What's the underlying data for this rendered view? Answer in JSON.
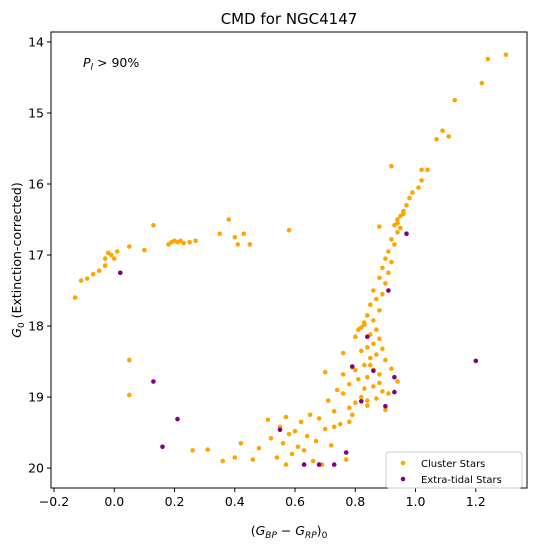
{
  "chart_data": {
    "type": "scatter",
    "title": "CMD for NGC4147",
    "annotation": "P_l > 90%",
    "xlabel": "(G_BP − G_RP)_0",
    "ylabel": "G_0 (Extinction-corrected)",
    "xlim": [
      -0.21,
      1.37
    ],
    "ylim": [
      20.28,
      13.86
    ],
    "y_inverted": true,
    "xticks": [
      -0.2,
      0.0,
      0.2,
      0.4,
      0.6,
      0.8,
      1.0,
      1.2
    ],
    "xtick_labels": [
      "−0.2",
      "0.0",
      "0.2",
      "0.4",
      "0.6",
      "0.8",
      "1.0",
      "1.2"
    ],
    "yticks": [
      14,
      15,
      16,
      17,
      18,
      19,
      20
    ],
    "ytick_labels": [
      "14",
      "15",
      "16",
      "17",
      "18",
      "19",
      "20"
    ],
    "grid": false,
    "legend_position": "bottom-right",
    "series": [
      {
        "name": "Cluster Stars",
        "color": "#ffa500",
        "points": [
          [
            1.3,
            14.18
          ],
          [
            1.24,
            14.24
          ],
          [
            1.22,
            14.58
          ],
          [
            1.13,
            14.82
          ],
          [
            1.09,
            15.25
          ],
          [
            1.07,
            15.37
          ],
          [
            1.11,
            15.33
          ],
          [
            0.92,
            15.75
          ],
          [
            1.02,
            15.8
          ],
          [
            1.04,
            15.8
          ],
          [
            1.02,
            15.95
          ],
          [
            1.01,
            16.05
          ],
          [
            0.99,
            16.12
          ],
          [
            0.98,
            16.2
          ],
          [
            0.97,
            16.3
          ],
          [
            0.96,
            16.38
          ],
          [
            0.95,
            16.45
          ],
          [
            0.94,
            16.5
          ],
          [
            0.93,
            16.58
          ],
          [
            0.94,
            16.55
          ],
          [
            0.96,
            16.42
          ],
          [
            0.88,
            16.6
          ],
          [
            0.95,
            16.62
          ],
          [
            0.94,
            16.68
          ],
          [
            0.92,
            16.78
          ],
          [
            0.93,
            16.85
          ],
          [
            0.91,
            16.95
          ],
          [
            0.9,
            17.05
          ],
          [
            0.92,
            17.1
          ],
          [
            0.89,
            17.18
          ],
          [
            0.91,
            17.25
          ],
          [
            0.88,
            17.32
          ],
          [
            0.9,
            17.4
          ],
          [
            0.86,
            17.5
          ],
          [
            0.89,
            17.55
          ],
          [
            0.87,
            17.62
          ],
          [
            0.85,
            17.7
          ],
          [
            0.88,
            17.78
          ],
          [
            0.84,
            17.85
          ],
          [
            0.86,
            17.92
          ],
          [
            0.83,
            17.98
          ],
          [
            0.87,
            18.05
          ],
          [
            0.82,
            18.02
          ],
          [
            0.85,
            18.12
          ],
          [
            0.8,
            18.15
          ],
          [
            0.88,
            18.18
          ],
          [
            0.86,
            18.25
          ],
          [
            0.84,
            18.3
          ],
          [
            0.89,
            18.32
          ],
          [
            0.82,
            18.35
          ],
          [
            0.87,
            18.4
          ],
          [
            0.76,
            18.38
          ],
          [
            0.85,
            18.45
          ],
          [
            0.9,
            18.48
          ],
          [
            0.83,
            18.55
          ],
          [
            0.79,
            18.58
          ],
          [
            0.86,
            18.62
          ],
          [
            0.92,
            18.6
          ],
          [
            0.88,
            18.68
          ],
          [
            0.84,
            18.72
          ],
          [
            0.81,
            18.75
          ],
          [
            0.94,
            18.78
          ],
          [
            0.78,
            18.82
          ],
          [
            0.86,
            18.85
          ],
          [
            0.83,
            18.88
          ],
          [
            0.89,
            18.92
          ],
          [
            0.74,
            18.9
          ],
          [
            0.76,
            18.95
          ],
          [
            0.82,
            19.0
          ],
          [
            0.87,
            19.02
          ],
          [
            0.71,
            19.05
          ],
          [
            0.8,
            19.08
          ],
          [
            0.84,
            19.12
          ],
          [
            0.78,
            19.15
          ],
          [
            0.9,
            19.18
          ],
          [
            0.73,
            19.2
          ],
          [
            0.65,
            19.25
          ],
          [
            0.57,
            19.28
          ],
          [
            0.68,
            19.3
          ],
          [
            0.51,
            19.32
          ],
          [
            0.62,
            19.35
          ],
          [
            0.75,
            19.38
          ],
          [
            0.55,
            19.42
          ],
          [
            0.7,
            19.45
          ],
          [
            0.6,
            19.48
          ],
          [
            0.58,
            19.52
          ],
          [
            0.64,
            19.55
          ],
          [
            0.52,
            19.58
          ],
          [
            0.67,
            19.62
          ],
          [
            0.56,
            19.65
          ],
          [
            0.72,
            19.68
          ],
          [
            0.61,
            19.7
          ],
          [
            0.48,
            19.72
          ],
          [
            0.63,
            19.75
          ],
          [
            0.59,
            19.8
          ],
          [
            0.54,
            19.85
          ],
          [
            0.66,
            19.9
          ],
          [
            0.46,
            19.88
          ],
          [
            0.57,
            19.95
          ],
          [
            0.42,
            19.65
          ],
          [
            0.4,
            19.85
          ],
          [
            0.36,
            19.9
          ],
          [
            0.31,
            19.74
          ],
          [
            0.26,
            19.75
          ],
          [
            0.69,
            19.95
          ],
          [
            0.77,
            19.88
          ],
          [
            0.78,
            19.35
          ],
          [
            0.73,
            19.42
          ],
          [
            0.8,
            18.62
          ],
          [
            0.76,
            18.68
          ],
          [
            0.7,
            18.65
          ],
          [
            0.83,
            17.95
          ],
          [
            0.81,
            18.05
          ],
          [
            0.85,
            18.55
          ],
          [
            0.88,
            18.8
          ],
          [
            0.91,
            18.95
          ],
          [
            0.84,
            19.05
          ],
          [
            0.79,
            19.25
          ],
          [
            -0.13,
            17.6
          ],
          [
            -0.11,
            17.36
          ],
          [
            -0.09,
            17.33
          ],
          [
            -0.07,
            17.27
          ],
          [
            -0.05,
            17.22
          ],
          [
            -0.03,
            17.15
          ],
          [
            -0.03,
            17.05
          ],
          [
            -0.01,
            17.0
          ],
          [
            -0.02,
            16.97
          ],
          [
            0.0,
            17.05
          ],
          [
            0.01,
            16.95
          ],
          [
            0.05,
            16.88
          ],
          [
            0.1,
            16.93
          ],
          [
            0.13,
            16.58
          ],
          [
            0.18,
            16.85
          ],
          [
            0.19,
            16.82
          ],
          [
            0.2,
            16.8
          ],
          [
            0.21,
            16.82
          ],
          [
            0.22,
            16.8
          ],
          [
            0.23,
            16.83
          ],
          [
            0.25,
            16.82
          ],
          [
            0.27,
            16.8
          ],
          [
            0.35,
            16.7
          ],
          [
            0.38,
            16.5
          ],
          [
            0.4,
            16.75
          ],
          [
            0.43,
            16.7
          ],
          [
            0.45,
            16.85
          ],
          [
            0.58,
            16.65
          ],
          [
            0.41,
            16.85
          ],
          [
            0.05,
            18.48
          ],
          [
            0.05,
            18.97
          ]
        ]
      },
      {
        "name": "Extra-tidal Stars",
        "color": "#800080",
        "points": [
          [
            0.02,
            17.25
          ],
          [
            0.13,
            18.78
          ],
          [
            0.16,
            19.7
          ],
          [
            0.21,
            19.31
          ],
          [
            0.55,
            19.46
          ],
          [
            0.63,
            19.95
          ],
          [
            0.68,
            19.95
          ],
          [
            0.73,
            19.95
          ],
          [
            0.77,
            19.78
          ],
          [
            0.79,
            18.57
          ],
          [
            0.82,
            19.06
          ],
          [
            0.84,
            18.15
          ],
          [
            0.86,
            18.63
          ],
          [
            0.9,
            19.13
          ],
          [
            0.91,
            17.5
          ],
          [
            0.93,
            18.72
          ],
          [
            0.93,
            18.93
          ],
          [
            0.97,
            16.7
          ],
          [
            1.2,
            18.49
          ]
        ]
      }
    ]
  }
}
